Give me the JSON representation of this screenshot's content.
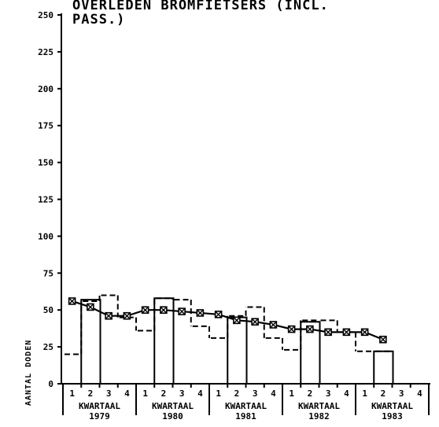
{
  "chart_data": {
    "type": "line",
    "title_lines": [
      "OVERLEDEN BROMFIETSERS (INCL.",
      "PASS.)"
    ],
    "ylabel": "AANTAL DODEN",
    "xlabel_prefix": "KWARTAAL",
    "ylim": [
      0,
      250
    ],
    "yticks": [
      0,
      25,
      50,
      75,
      100,
      125,
      150,
      175,
      200,
      225,
      250
    ],
    "ytick_labels": [
      "0",
      "25",
      "50",
      "75",
      "100",
      "125",
      "150",
      "175",
      "200",
      "225",
      "250"
    ],
    "years": [
      "1979",
      "1980",
      "1981",
      "1982",
      "1983"
    ],
    "quarters": [
      "1",
      "2",
      "3",
      "4"
    ],
    "series": [
      {
        "style": "dashed-step",
        "values": [
          20,
          56,
          60,
          45,
          36,
          58,
          57,
          39,
          31,
          46,
          52,
          31,
          23,
          43,
          43,
          35,
          22,
          22,
          null,
          null
        ]
      },
      {
        "style": "solid-step-bars",
        "values": [
          null,
          57,
          null,
          null,
          null,
          58,
          null,
          null,
          null,
          45,
          null,
          null,
          null,
          42,
          null,
          null,
          null,
          22,
          null,
          null
        ]
      },
      {
        "style": "smoothed-line-markers",
        "values": [
          56,
          52,
          46,
          46,
          50,
          50,
          49,
          48,
          47,
          43,
          42,
          40,
          37,
          37,
          35,
          35,
          35,
          30,
          null,
          null
        ]
      }
    ]
  }
}
